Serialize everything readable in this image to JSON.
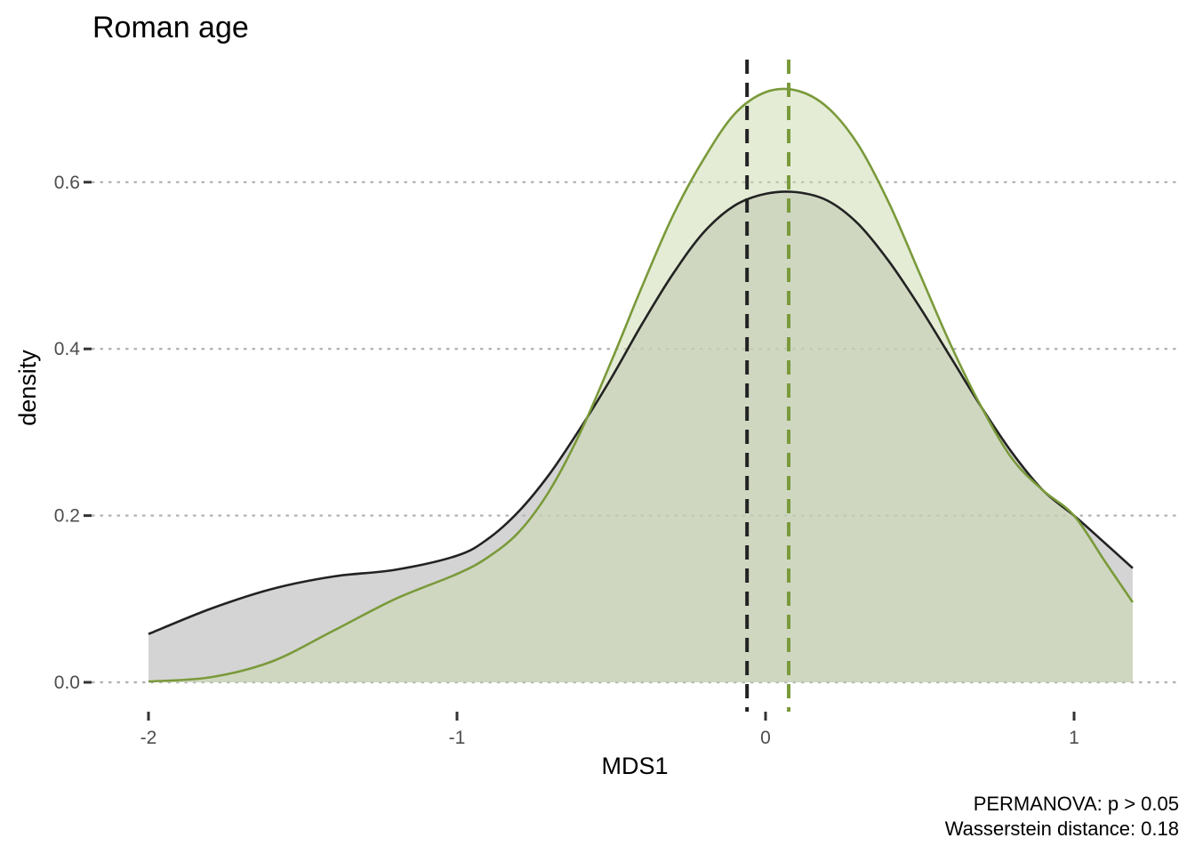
{
  "chart_data": {
    "type": "area",
    "title": "Roman age",
    "xlabel": "MDS1",
    "ylabel": "density",
    "xlim": [
      -2.03,
      1.35
    ],
    "ylim": [
      0,
      0.74
    ],
    "x_ticks": [
      -2,
      -1,
      0,
      1
    ],
    "x_tick_labels": [
      "-2",
      "-1",
      "0",
      "1"
    ],
    "y_ticks": [
      0.0,
      0.2,
      0.4,
      0.6
    ],
    "y_tick_labels": [
      "0.0",
      "0.2",
      "0.4",
      "0.6"
    ],
    "grid": "horizontal dotted",
    "legend": "none",
    "series": [
      {
        "color": "#222222",
        "fill": "#bdbdbd",
        "mean": -0.06,
        "x": [
          -2.0,
          -1.8,
          -1.6,
          -1.4,
          -1.2,
          -1.0,
          -0.9,
          -0.8,
          -0.7,
          -0.6,
          -0.5,
          -0.4,
          -0.3,
          -0.2,
          -0.1,
          0.0,
          0.1,
          0.2,
          0.3,
          0.4,
          0.5,
          0.6,
          0.7,
          0.8,
          0.9,
          1.0,
          1.1,
          1.19
        ],
        "y": [
          0.058,
          0.088,
          0.112,
          0.127,
          0.135,
          0.152,
          0.172,
          0.205,
          0.25,
          0.305,
          0.365,
          0.43,
          0.49,
          0.54,
          0.572,
          0.586,
          0.588,
          0.578,
          0.55,
          0.505,
          0.45,
          0.39,
          0.33,
          0.275,
          0.23,
          0.2,
          0.167,
          0.137
        ]
      },
      {
        "color": "#7a9a3a",
        "fill": "#c9d9ae",
        "mean": 0.075,
        "x": [
          -2.0,
          -1.8,
          -1.6,
          -1.4,
          -1.2,
          -1.0,
          -0.9,
          -0.8,
          -0.7,
          -0.6,
          -0.5,
          -0.4,
          -0.3,
          -0.2,
          -0.1,
          0.0,
          0.1,
          0.2,
          0.3,
          0.4,
          0.5,
          0.6,
          0.7,
          0.8,
          0.9,
          1.0,
          1.1,
          1.19
        ],
        "y": [
          0.001,
          0.006,
          0.025,
          0.062,
          0.1,
          0.13,
          0.15,
          0.18,
          0.23,
          0.3,
          0.385,
          0.475,
          0.56,
          0.628,
          0.682,
          0.708,
          0.71,
          0.69,
          0.645,
          0.575,
          0.49,
          0.405,
          0.33,
          0.268,
          0.23,
          0.2,
          0.145,
          0.096
        ]
      }
    ]
  },
  "caption": {
    "line1": "PERMANOVA: p > 0.05",
    "line2": "Wasserstein distance: 0.18"
  }
}
